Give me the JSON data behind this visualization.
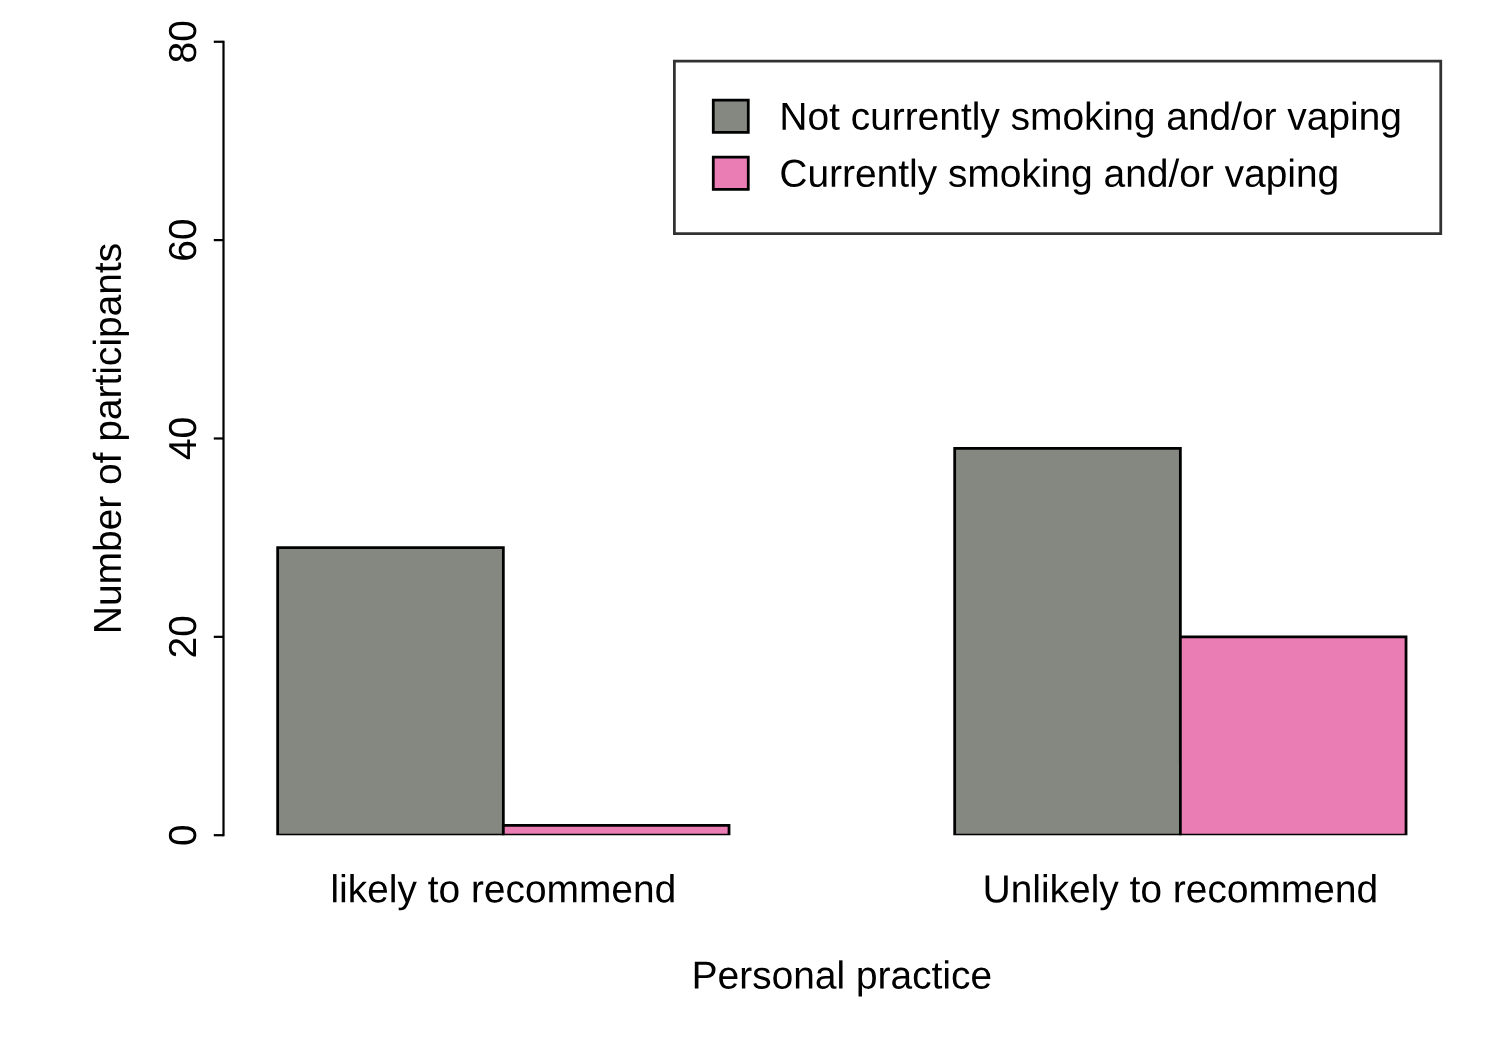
{
  "chart_data": {
    "type": "bar",
    "xlabel": "Personal practice",
    "ylabel": "Number of participants",
    "categories": [
      "likely to recommend",
      "Unlikely to recommend"
    ],
    "series": [
      {
        "name": "Not currently smoking and/or vaping",
        "color": "#848880",
        "values": [
          29,
          39
        ]
      },
      {
        "name": "Currently smoking and/or vaping",
        "color": "#ea7db4",
        "values": [
          1,
          20
        ]
      }
    ],
    "ylim": [
      0,
      80
    ],
    "yticks": [
      0,
      20,
      40,
      60,
      80
    ],
    "grid": false,
    "legend": "top right"
  }
}
